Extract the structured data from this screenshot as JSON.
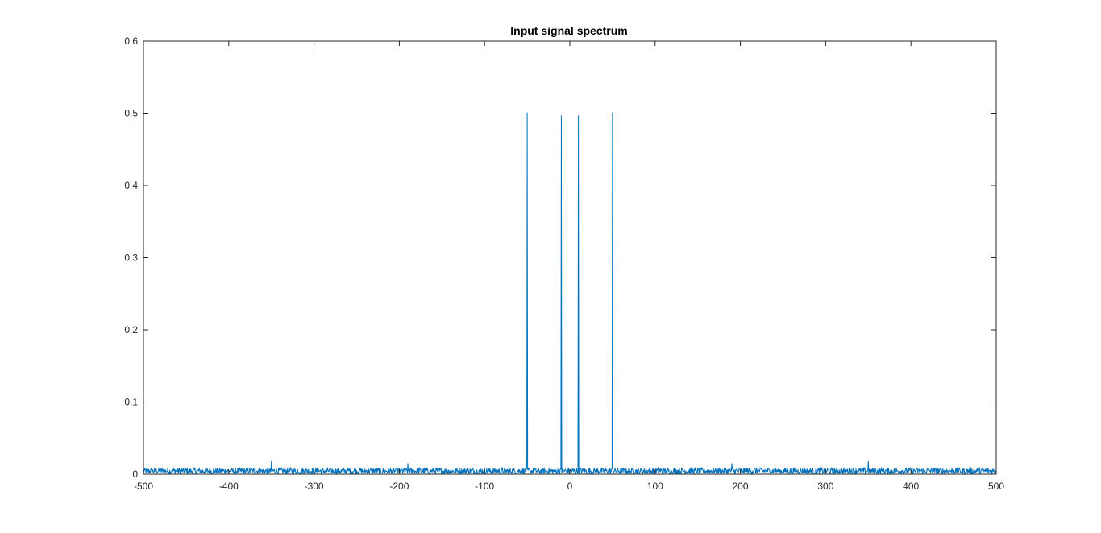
{
  "chart_data": {
    "type": "line",
    "title": "Input signal spectrum",
    "xlabel": "",
    "ylabel": "",
    "xlim": [
      -500,
      500
    ],
    "ylim": [
      0,
      0.6
    ],
    "xticks": [
      "-500",
      "-400",
      "-300",
      "-200",
      "-100",
      "0",
      "100",
      "200",
      "300",
      "400",
      "500"
    ],
    "yticks": [
      "0",
      "0.1",
      "0.2",
      "0.3",
      "0.4",
      "0.5",
      "0.6"
    ],
    "grid": false,
    "legend": "none",
    "series": [
      {
        "color": "#0072BD",
        "noise_floor": 0.004,
        "noise_max": 0.01,
        "peaks": [
          {
            "x": -50,
            "y": 0.501
          },
          {
            "x": -10,
            "y": 0.497
          },
          {
            "x": 10,
            "y": 0.497
          },
          {
            "x": 50,
            "y": 0.501
          },
          {
            "x": -350,
            "y": 0.018
          },
          {
            "x": 350,
            "y": 0.018
          },
          {
            "x": -190,
            "y": 0.015
          },
          {
            "x": 190,
            "y": 0.015
          }
        ]
      }
    ]
  }
}
